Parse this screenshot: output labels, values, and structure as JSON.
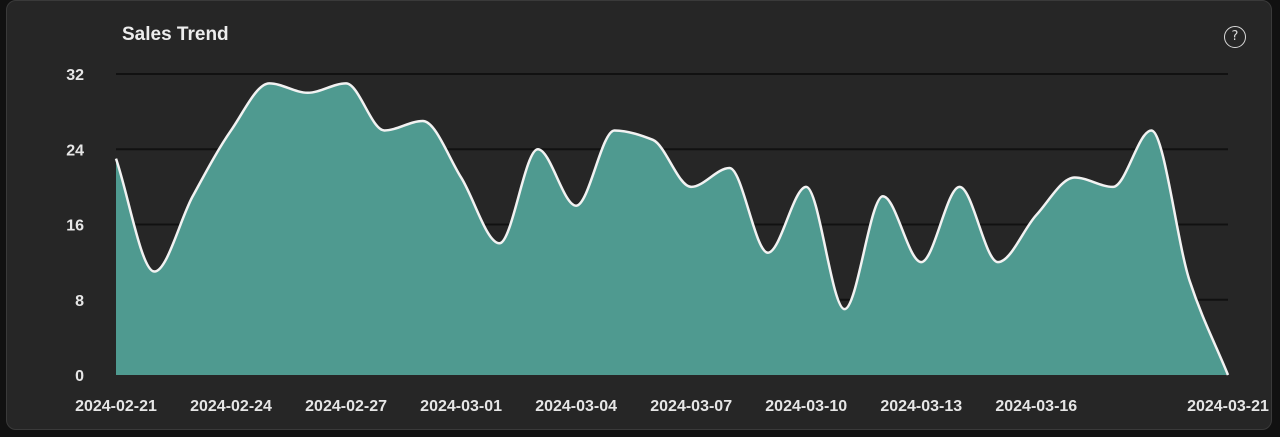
{
  "header": {
    "title": "Sales Trend",
    "help_icon": "question-circle-icon"
  },
  "colors": {
    "background": "#262626",
    "area_fill": "#4f9a90",
    "line": "#f2f2f2",
    "grid": "#111111",
    "text": "#e6e6e6"
  },
  "chart_data": {
    "type": "area",
    "title": "Sales Trend",
    "xlabel": "",
    "ylabel": "",
    "ylim": [
      0,
      32
    ],
    "yticks": [
      0,
      8,
      16,
      24,
      32
    ],
    "xticks": [
      "2024-02-21",
      "2024-02-24",
      "2024-02-27",
      "2024-03-01",
      "2024-03-04",
      "2024-03-07",
      "2024-03-10",
      "2024-03-13",
      "2024-03-16",
      "2024-03-21"
    ],
    "grid": "horizontal",
    "legend": "none",
    "x": [
      "2024-02-21",
      "2024-02-22",
      "2024-02-23",
      "2024-02-24",
      "2024-02-25",
      "2024-02-26",
      "2024-02-27",
      "2024-02-28",
      "2024-02-29",
      "2024-03-01",
      "2024-03-02",
      "2024-03-03",
      "2024-03-04",
      "2024-03-05",
      "2024-03-06",
      "2024-03-07",
      "2024-03-08",
      "2024-03-09",
      "2024-03-10",
      "2024-03-11",
      "2024-03-12",
      "2024-03-13",
      "2024-03-14",
      "2024-03-15",
      "2024-03-16",
      "2024-03-17",
      "2024-03-18",
      "2024-03-19",
      "2024-03-20",
      "2024-03-21"
    ],
    "values": [
      23,
      11,
      19,
      26,
      31,
      30,
      31,
      26,
      27,
      21,
      14,
      24,
      18,
      26,
      25,
      20,
      22,
      13,
      20,
      7,
      19,
      12,
      20,
      12,
      17,
      21,
      20,
      26,
      10,
      0
    ]
  }
}
